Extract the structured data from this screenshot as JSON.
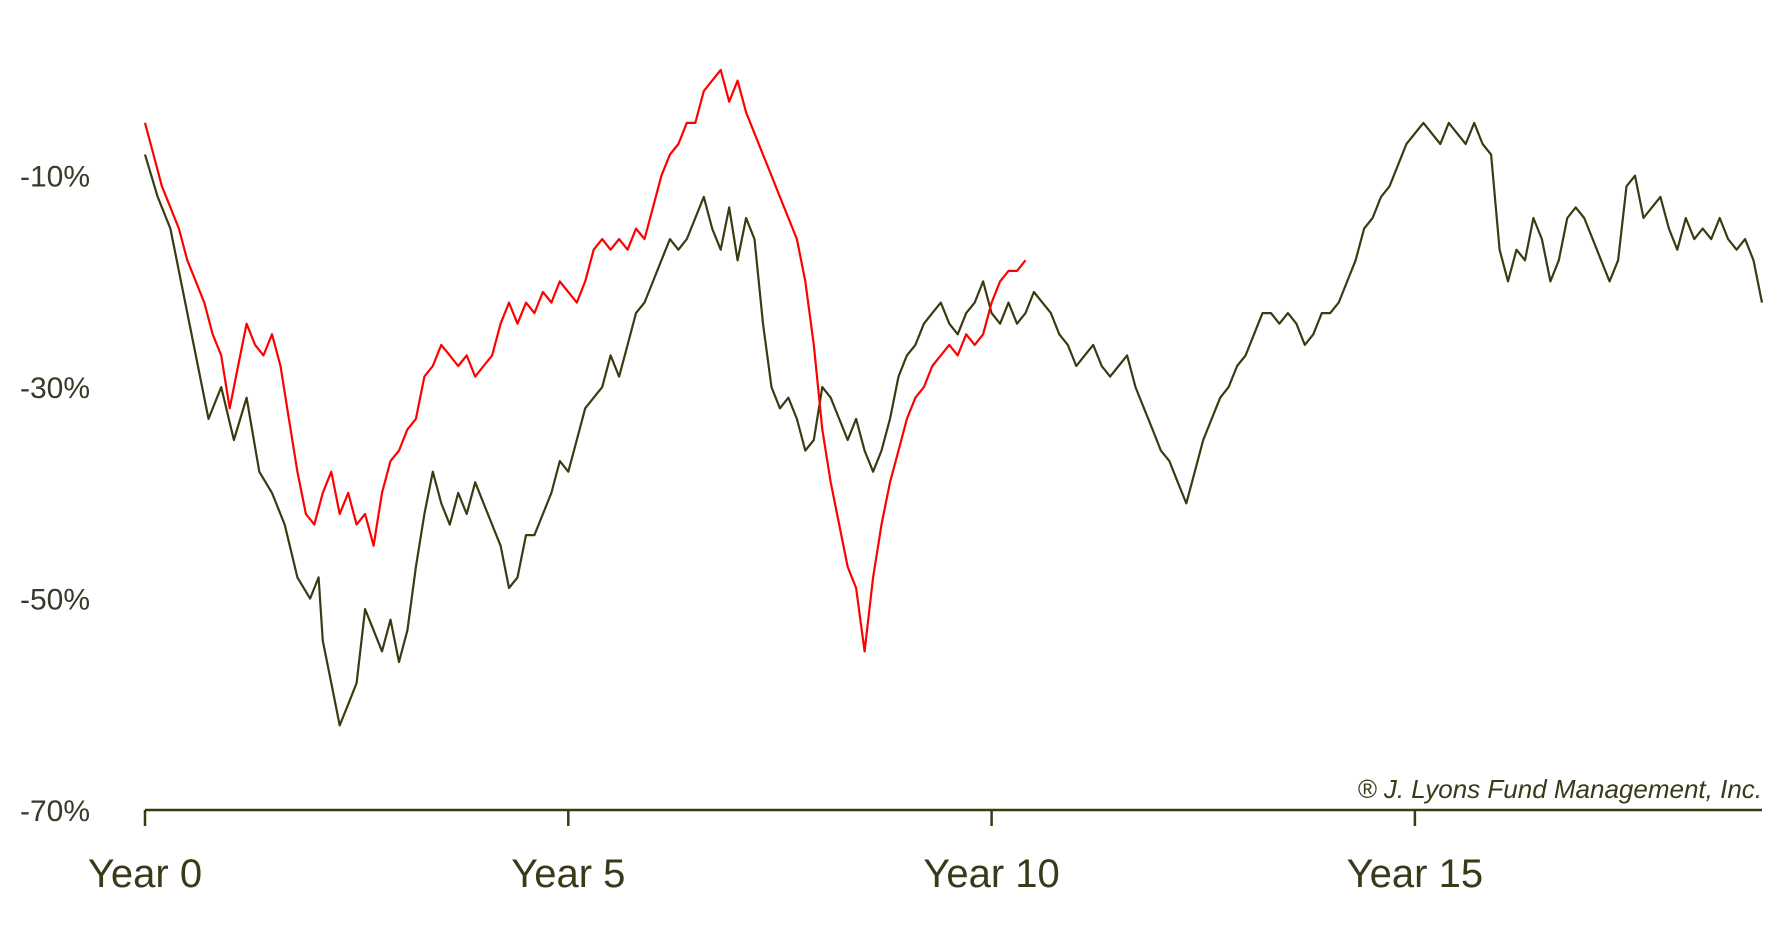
{
  "chart_data": {
    "type": "line",
    "title": "",
    "xlabel": "",
    "ylabel": "",
    "x_range": [
      0,
      19.1
    ],
    "ylim": [
      -70,
      0
    ],
    "x_ticks": [
      0,
      5,
      10,
      15
    ],
    "x_tick_labels": [
      "Year 0",
      "Year 5",
      "Year 10",
      "Year 15"
    ],
    "y_ticks": [
      -10,
      -30,
      -50,
      -70
    ],
    "y_tick_labels": [
      "-10%",
      "-30%",
      "-50%",
      "-70%"
    ],
    "grid": false,
    "legend": "none",
    "annotation": "® J. Lyons Fund Management, Inc.",
    "series": [
      {
        "color": "#3b3a12",
        "points": [
          [
            0.0,
            -8
          ],
          [
            0.15,
            -12
          ],
          [
            0.3,
            -15
          ],
          [
            0.45,
            -21
          ],
          [
            0.6,
            -27
          ],
          [
            0.75,
            -33
          ],
          [
            0.9,
            -30
          ],
          [
            1.05,
            -35
          ],
          [
            1.2,
            -31
          ],
          [
            1.35,
            -38
          ],
          [
            1.5,
            -40
          ],
          [
            1.65,
            -43
          ],
          [
            1.8,
            -48
          ],
          [
            1.95,
            -50
          ],
          [
            2.05,
            -48
          ],
          [
            2.1,
            -54
          ],
          [
            2.2,
            -58
          ],
          [
            2.3,
            -62
          ],
          [
            2.4,
            -60
          ],
          [
            2.5,
            -58
          ],
          [
            2.6,
            -51
          ],
          [
            2.7,
            -53
          ],
          [
            2.8,
            -55
          ],
          [
            2.9,
            -52
          ],
          [
            3.0,
            -56
          ],
          [
            3.1,
            -53
          ],
          [
            3.2,
            -47
          ],
          [
            3.3,
            -42
          ],
          [
            3.4,
            -38
          ],
          [
            3.5,
            -41
          ],
          [
            3.6,
            -43
          ],
          [
            3.7,
            -40
          ],
          [
            3.8,
            -42
          ],
          [
            3.9,
            -39
          ],
          [
            4.0,
            -41
          ],
          [
            4.1,
            -43
          ],
          [
            4.2,
            -45
          ],
          [
            4.3,
            -49
          ],
          [
            4.4,
            -48
          ],
          [
            4.5,
            -44
          ],
          [
            4.6,
            -44
          ],
          [
            4.7,
            -42
          ],
          [
            4.8,
            -40
          ],
          [
            4.9,
            -37
          ],
          [
            5.0,
            -38
          ],
          [
            5.1,
            -35
          ],
          [
            5.2,
            -32
          ],
          [
            5.3,
            -31
          ],
          [
            5.4,
            -30
          ],
          [
            5.5,
            -27
          ],
          [
            5.6,
            -29
          ],
          [
            5.7,
            -26
          ],
          [
            5.8,
            -23
          ],
          [
            5.9,
            -22
          ],
          [
            6.0,
            -20
          ],
          [
            6.1,
            -18
          ],
          [
            6.2,
            -16
          ],
          [
            6.3,
            -17
          ],
          [
            6.4,
            -16
          ],
          [
            6.5,
            -14
          ],
          [
            6.6,
            -12
          ],
          [
            6.7,
            -15
          ],
          [
            6.8,
            -17
          ],
          [
            6.9,
            -13
          ],
          [
            7.0,
            -18
          ],
          [
            7.1,
            -14
          ],
          [
            7.2,
            -16
          ],
          [
            7.3,
            -24
          ],
          [
            7.4,
            -30
          ],
          [
            7.5,
            -32
          ],
          [
            7.6,
            -31
          ],
          [
            7.7,
            -33
          ],
          [
            7.8,
            -36
          ],
          [
            7.9,
            -35
          ],
          [
            8.0,
            -30
          ],
          [
            8.1,
            -31
          ],
          [
            8.2,
            -33
          ],
          [
            8.3,
            -35
          ],
          [
            8.4,
            -33
          ],
          [
            8.5,
            -36
          ],
          [
            8.6,
            -38
          ],
          [
            8.7,
            -36
          ],
          [
            8.8,
            -33
          ],
          [
            8.9,
            -29
          ],
          [
            9.0,
            -27
          ],
          [
            9.1,
            -26
          ],
          [
            9.2,
            -24
          ],
          [
            9.3,
            -23
          ],
          [
            9.4,
            -22
          ],
          [
            9.5,
            -24
          ],
          [
            9.6,
            -25
          ],
          [
            9.7,
            -23
          ],
          [
            9.8,
            -22
          ],
          [
            9.9,
            -20
          ],
          [
            10.0,
            -23
          ],
          [
            10.1,
            -24
          ],
          [
            10.2,
            -22
          ],
          [
            10.3,
            -24
          ],
          [
            10.4,
            -23
          ],
          [
            10.5,
            -21
          ],
          [
            10.6,
            -22
          ],
          [
            10.7,
            -23
          ],
          [
            10.8,
            -25
          ],
          [
            10.9,
            -26
          ],
          [
            11.0,
            -28
          ],
          [
            11.1,
            -27
          ],
          [
            11.2,
            -26
          ],
          [
            11.3,
            -28
          ],
          [
            11.4,
            -29
          ],
          [
            11.5,
            -28
          ],
          [
            11.6,
            -27
          ],
          [
            11.7,
            -30
          ],
          [
            11.8,
            -32
          ],
          [
            11.9,
            -34
          ],
          [
            12.0,
            -36
          ],
          [
            12.1,
            -37
          ],
          [
            12.2,
            -39
          ],
          [
            12.3,
            -41
          ],
          [
            12.4,
            -38
          ],
          [
            12.5,
            -35
          ],
          [
            12.6,
            -33
          ],
          [
            12.7,
            -31
          ],
          [
            12.8,
            -30
          ],
          [
            12.9,
            -28
          ],
          [
            13.0,
            -27
          ],
          [
            13.1,
            -25
          ],
          [
            13.2,
            -23
          ],
          [
            13.3,
            -23
          ],
          [
            13.4,
            -24
          ],
          [
            13.5,
            -23
          ],
          [
            13.6,
            -24
          ],
          [
            13.7,
            -26
          ],
          [
            13.8,
            -25
          ],
          [
            13.9,
            -23
          ],
          [
            14.0,
            -23
          ],
          [
            14.1,
            -22
          ],
          [
            14.2,
            -20
          ],
          [
            14.3,
            -18
          ],
          [
            14.4,
            -15
          ],
          [
            14.5,
            -14
          ],
          [
            14.6,
            -12
          ],
          [
            14.7,
            -11
          ],
          [
            14.8,
            -9
          ],
          [
            14.9,
            -7
          ],
          [
            15.0,
            -6
          ],
          [
            15.1,
            -5
          ],
          [
            15.2,
            -6
          ],
          [
            15.3,
            -7
          ],
          [
            15.4,
            -5
          ],
          [
            15.5,
            -6
          ],
          [
            15.6,
            -7
          ],
          [
            15.7,
            -5
          ],
          [
            15.8,
            -7
          ],
          [
            15.9,
            -8
          ],
          [
            16.0,
            -17
          ],
          [
            16.1,
            -20
          ],
          [
            16.2,
            -17
          ],
          [
            16.3,
            -18
          ],
          [
            16.4,
            -14
          ],
          [
            16.5,
            -16
          ],
          [
            16.6,
            -20
          ],
          [
            16.7,
            -18
          ],
          [
            16.8,
            -14
          ],
          [
            16.9,
            -13
          ],
          [
            17.0,
            -14
          ],
          [
            17.1,
            -16
          ],
          [
            17.2,
            -18
          ],
          [
            17.3,
            -20
          ],
          [
            17.4,
            -18
          ],
          [
            17.5,
            -11
          ],
          [
            17.6,
            -10
          ],
          [
            17.7,
            -14
          ],
          [
            17.8,
            -13
          ],
          [
            17.9,
            -12
          ],
          [
            18.0,
            -15
          ],
          [
            18.1,
            -17
          ],
          [
            18.2,
            -14
          ],
          [
            18.3,
            -16
          ],
          [
            18.4,
            -15
          ],
          [
            18.5,
            -16
          ],
          [
            18.6,
            -14
          ],
          [
            18.7,
            -16
          ],
          [
            18.8,
            -17
          ],
          [
            18.9,
            -16
          ],
          [
            19.0,
            -18
          ],
          [
            19.1,
            -22
          ]
        ]
      },
      {
        "color": "#ff0000",
        "points": [
          [
            0.0,
            -5
          ],
          [
            0.1,
            -8
          ],
          [
            0.2,
            -11
          ],
          [
            0.3,
            -13
          ],
          [
            0.4,
            -15
          ],
          [
            0.5,
            -18
          ],
          [
            0.6,
            -20
          ],
          [
            0.7,
            -22
          ],
          [
            0.8,
            -25
          ],
          [
            0.9,
            -27
          ],
          [
            1.0,
            -32
          ],
          [
            1.1,
            -28
          ],
          [
            1.2,
            -24
          ],
          [
            1.3,
            -26
          ],
          [
            1.4,
            -27
          ],
          [
            1.5,
            -25
          ],
          [
            1.6,
            -28
          ],
          [
            1.7,
            -33
          ],
          [
            1.8,
            -38
          ],
          [
            1.9,
            -42
          ],
          [
            2.0,
            -43
          ],
          [
            2.1,
            -40
          ],
          [
            2.2,
            -38
          ],
          [
            2.3,
            -42
          ],
          [
            2.4,
            -40
          ],
          [
            2.5,
            -43
          ],
          [
            2.6,
            -42
          ],
          [
            2.7,
            -45
          ],
          [
            2.8,
            -40
          ],
          [
            2.9,
            -37
          ],
          [
            3.0,
            -36
          ],
          [
            3.1,
            -34
          ],
          [
            3.2,
            -33
          ],
          [
            3.3,
            -29
          ],
          [
            3.4,
            -28
          ],
          [
            3.5,
            -26
          ],
          [
            3.6,
            -27
          ],
          [
            3.7,
            -28
          ],
          [
            3.8,
            -27
          ],
          [
            3.9,
            -29
          ],
          [
            4.0,
            -28
          ],
          [
            4.1,
            -27
          ],
          [
            4.2,
            -24
          ],
          [
            4.3,
            -22
          ],
          [
            4.4,
            -24
          ],
          [
            4.5,
            -22
          ],
          [
            4.6,
            -23
          ],
          [
            4.7,
            -21
          ],
          [
            4.8,
            -22
          ],
          [
            4.9,
            -20
          ],
          [
            5.0,
            -21
          ],
          [
            5.1,
            -22
          ],
          [
            5.2,
            -20
          ],
          [
            5.3,
            -17
          ],
          [
            5.4,
            -16
          ],
          [
            5.5,
            -17
          ],
          [
            5.6,
            -16
          ],
          [
            5.7,
            -17
          ],
          [
            5.8,
            -15
          ],
          [
            5.9,
            -16
          ],
          [
            6.0,
            -13
          ],
          [
            6.1,
            -10
          ],
          [
            6.2,
            -8
          ],
          [
            6.3,
            -7
          ],
          [
            6.4,
            -5
          ],
          [
            6.5,
            -5
          ],
          [
            6.6,
            -2
          ],
          [
            6.7,
            -1
          ],
          [
            6.8,
            0
          ],
          [
            6.9,
            -3
          ],
          [
            7.0,
            -1
          ],
          [
            7.1,
            -4
          ],
          [
            7.2,
            -6
          ],
          [
            7.3,
            -8
          ],
          [
            7.4,
            -10
          ],
          [
            7.5,
            -12
          ],
          [
            7.6,
            -14
          ],
          [
            7.7,
            -16
          ],
          [
            7.8,
            -20
          ],
          [
            7.9,
            -26
          ],
          [
            8.0,
            -34
          ],
          [
            8.1,
            -39
          ],
          [
            8.2,
            -43
          ],
          [
            8.3,
            -47
          ],
          [
            8.4,
            -49
          ],
          [
            8.5,
            -55
          ],
          [
            8.6,
            -48
          ],
          [
            8.7,
            -43
          ],
          [
            8.8,
            -39
          ],
          [
            8.9,
            -36
          ],
          [
            9.0,
            -33
          ],
          [
            9.1,
            -31
          ],
          [
            9.2,
            -30
          ],
          [
            9.3,
            -28
          ],
          [
            9.4,
            -27
          ],
          [
            9.5,
            -26
          ],
          [
            9.6,
            -27
          ],
          [
            9.7,
            -25
          ],
          [
            9.8,
            -26
          ],
          [
            9.9,
            -25
          ],
          [
            10.0,
            -22
          ],
          [
            10.1,
            -20
          ],
          [
            10.2,
            -19
          ],
          [
            10.3,
            -19
          ],
          [
            10.4,
            -18
          ]
        ]
      }
    ]
  }
}
